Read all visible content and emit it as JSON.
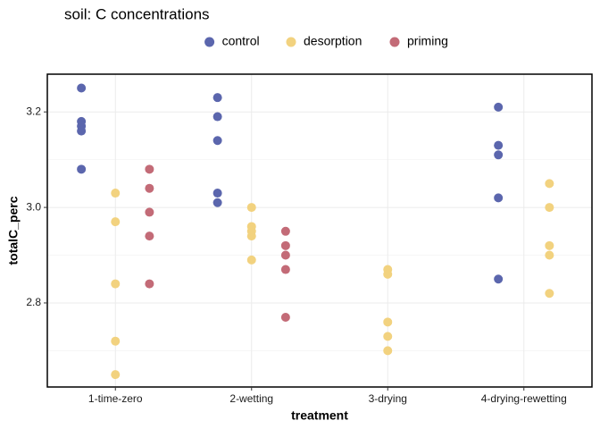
{
  "chart_data": {
    "type": "dodged-dot",
    "title": "soil: C concentrations",
    "x_label": "treatment",
    "y_label": "totalC_perc",
    "categories": [
      "1-time-zero",
      "2-wetting",
      "3-drying",
      "4-drying-rewetting"
    ],
    "series": [
      {
        "name": "control",
        "color": "#5b66ad",
        "values": [
          [
            3.25,
            3.18,
            3.17,
            3.16,
            3.08
          ],
          [
            3.23,
            3.19,
            3.14,
            3.03,
            3.01
          ],
          [],
          [
            3.21,
            3.13,
            3.11,
            3.02,
            2.85
          ]
        ]
      },
      {
        "name": "desorption",
        "color": "#f2d27f",
        "values": [
          [
            3.03,
            2.97,
            2.84,
            2.72,
            2.65
          ],
          [
            3.0,
            2.96,
            2.95,
            2.94,
            2.89
          ],
          [
            2.87,
            2.86,
            2.76,
            2.73,
            2.7
          ],
          [
            3.05,
            3.0,
            2.92,
            2.9,
            2.82
          ]
        ]
      },
      {
        "name": "priming",
        "color": "#c36b77",
        "values": [
          [
            3.08,
            3.04,
            2.99,
            2.94,
            2.84
          ],
          [
            2.95,
            2.92,
            2.9,
            2.87,
            2.77
          ],
          [],
          []
        ]
      }
    ],
    "ylim": [
      2.624,
      3.279
    ],
    "yticks": [
      {
        "value": 2.8,
        "label": "2.8"
      },
      {
        "value": 3.0,
        "label": "3.0"
      },
      {
        "value": 3.2,
        "label": "3.2"
      }
    ],
    "grid": true,
    "legend": "top"
  }
}
